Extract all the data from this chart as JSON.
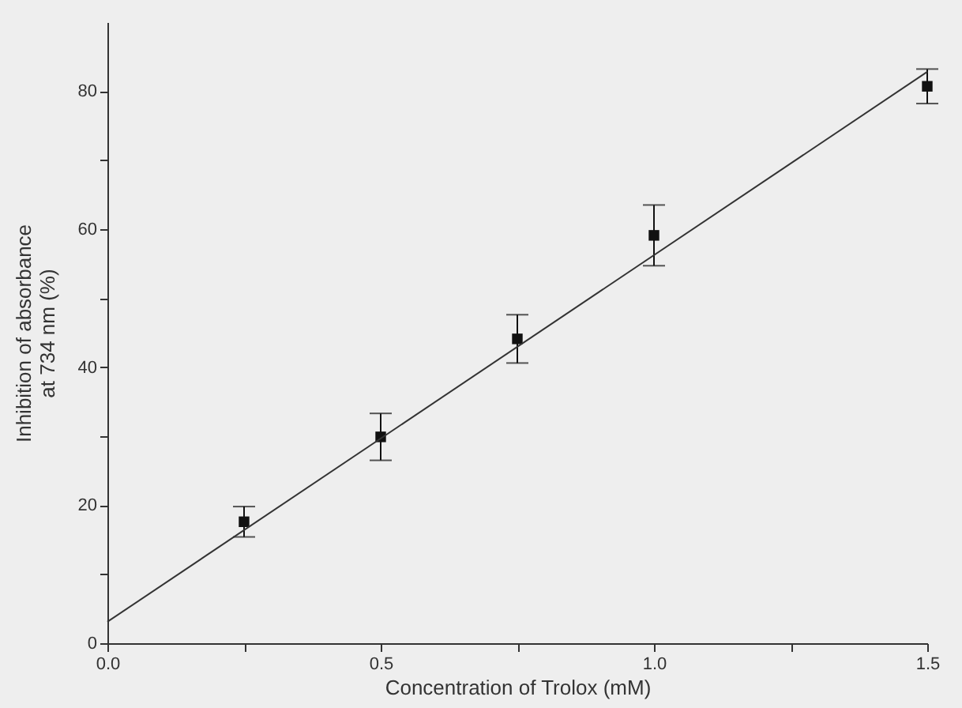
{
  "chart_data": {
    "type": "scatter",
    "xlabel": "Concentration of Trolox (mM)",
    "ylabel": "Inhibition of absorbance\nat 734 nm (%)",
    "x": [
      0.25,
      0.5,
      0.75,
      1.0,
      1.5
    ],
    "series": [
      {
        "color": "#111111",
        "values": [
          17.6,
          29.9,
          44.1,
          59.1,
          80.7
        ],
        "errors": [
          2.2,
          3.4,
          3.5,
          4.4,
          2.5
        ],
        "marker": "square"
      },
      {
        "type": "line",
        "color": "#333333",
        "x": [
          0,
          1.5
        ],
        "values": [
          3.1,
          82.8
        ],
        "line_style": "solid"
      }
    ],
    "xlim": [
      0,
      1.5
    ],
    "ylim": [
      0,
      90
    ],
    "xticks": [
      {
        "value": 0,
        "label": "0.0"
      },
      {
        "value": 0.25,
        "label": null
      },
      {
        "value": 0.5,
        "label": "0.5"
      },
      {
        "value": 0.75,
        "label": null
      },
      {
        "value": 1.0,
        "label": "1.0"
      },
      {
        "value": 1.25,
        "label": null
      },
      {
        "value": 1.5,
        "label": "1.5"
      }
    ],
    "yticks": [
      0,
      {
        "value": 10,
        "label": null
      },
      20,
      {
        "value": 30,
        "label": null
      },
      40,
      {
        "value": 50,
        "label": null
      },
      60,
      {
        "value": 70,
        "label": null
      },
      80
    ],
    "grid": false
  }
}
